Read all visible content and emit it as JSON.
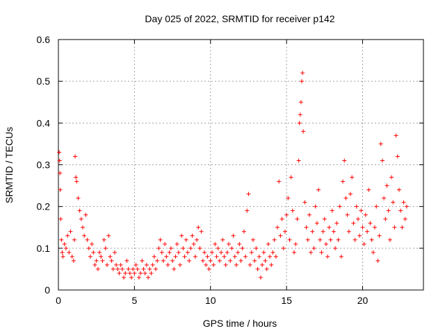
{
  "chart_data": {
    "type": "scatter",
    "title": "Day 025 of 2022, SRMTID for receiver p142",
    "xlabel": "GPS time / hours",
    "ylabel": "SRMTID / TECUs",
    "xlim": [
      0,
      24
    ],
    "ylim": [
      0,
      0.6
    ],
    "xticks": [
      0,
      5,
      10,
      15,
      20
    ],
    "yticks": [
      0,
      0.1,
      0.2,
      0.3,
      0.4,
      0.5,
      0.6
    ],
    "xtick_labels": [
      "0",
      "5",
      "10",
      "15",
      "20"
    ],
    "ytick_labels": [
      "0",
      "0.1",
      "0.2",
      "0.3",
      "0.4",
      "0.5",
      "0.6"
    ],
    "grid": true,
    "marker": "+",
    "color": "#ff0000",
    "series": [
      {
        "name": "SRMTID",
        "points": [
          [
            0.05,
            0.33
          ],
          [
            0.08,
            0.31
          ],
          [
            0.1,
            0.28
          ],
          [
            0.12,
            0.24
          ],
          [
            0.15,
            0.17
          ],
          [
            0.2,
            0.12
          ],
          [
            0.25,
            0.09
          ],
          [
            0.3,
            0.08
          ],
          [
            0.4,
            0.11
          ],
          [
            0.5,
            0.1
          ],
          [
            0.6,
            0.13
          ],
          [
            0.7,
            0.09
          ],
          [
            0.8,
            0.14
          ],
          [
            0.9,
            0.08
          ],
          [
            1.0,
            0.07
          ],
          [
            1.05,
            0.12
          ],
          [
            1.1,
            0.32
          ],
          [
            1.15,
            0.27
          ],
          [
            1.2,
            0.26
          ],
          [
            1.3,
            0.22
          ],
          [
            1.4,
            0.19
          ],
          [
            1.5,
            0.17
          ],
          [
            1.6,
            0.15
          ],
          [
            1.7,
            0.13
          ],
          [
            1.8,
            0.18
          ],
          [
            1.9,
            0.12
          ],
          [
            2.0,
            0.1
          ],
          [
            2.1,
            0.08
          ],
          [
            2.2,
            0.11
          ],
          [
            2.3,
            0.09
          ],
          [
            2.4,
            0.06
          ],
          [
            2.5,
            0.07
          ],
          [
            2.6,
            0.05
          ],
          [
            2.7,
            0.09
          ],
          [
            2.8,
            0.08
          ],
          [
            2.9,
            0.07
          ],
          [
            3.0,
            0.12
          ],
          [
            3.1,
            0.1
          ],
          [
            3.2,
            0.06
          ],
          [
            3.3,
            0.13
          ],
          [
            3.4,
            0.08
          ],
          [
            3.5,
            0.07
          ],
          [
            3.6,
            0.05
          ],
          [
            3.7,
            0.09
          ],
          [
            3.8,
            0.06
          ],
          [
            3.9,
            0.05
          ],
          [
            4.0,
            0.04
          ],
          [
            4.1,
            0.06
          ],
          [
            4.2,
            0.05
          ],
          [
            4.3,
            0.03
          ],
          [
            4.4,
            0.04
          ],
          [
            4.5,
            0.07
          ],
          [
            4.6,
            0.05
          ],
          [
            4.7,
            0.04
          ],
          [
            4.8,
            0.03
          ],
          [
            4.9,
            0.05
          ],
          [
            5.0,
            0.04
          ],
          [
            5.1,
            0.06
          ],
          [
            5.2,
            0.05
          ],
          [
            5.3,
            0.03
          ],
          [
            5.4,
            0.04
          ],
          [
            5.5,
            0.07
          ],
          [
            5.6,
            0.05
          ],
          [
            5.7,
            0.04
          ],
          [
            5.8,
            0.06
          ],
          [
            5.9,
            0.03
          ],
          [
            6.0,
            0.05
          ],
          [
            6.1,
            0.04
          ],
          [
            6.2,
            0.06
          ],
          [
            6.3,
            0.08
          ],
          [
            6.4,
            0.05
          ],
          [
            6.5,
            0.07
          ],
          [
            6.6,
            0.1
          ],
          [
            6.7,
            0.12
          ],
          [
            6.8,
            0.09
          ],
          [
            6.9,
            0.07
          ],
          [
            7.0,
            0.11
          ],
          [
            7.1,
            0.08
          ],
          [
            7.2,
            0.06
          ],
          [
            7.3,
            0.09
          ],
          [
            7.4,
            0.1
          ],
          [
            7.5,
            0.07
          ],
          [
            7.6,
            0.05
          ],
          [
            7.7,
            0.08
          ],
          [
            7.8,
            0.11
          ],
          [
            7.9,
            0.09
          ],
          [
            8.0,
            0.06
          ],
          [
            8.1,
            0.13
          ],
          [
            8.2,
            0.1
          ],
          [
            8.3,
            0.08
          ],
          [
            8.4,
            0.12
          ],
          [
            8.5,
            0.09
          ],
          [
            8.6,
            0.07
          ],
          [
            8.7,
            0.1
          ],
          [
            8.8,
            0.13
          ],
          [
            8.9,
            0.11
          ],
          [
            9.0,
            0.08
          ],
          [
            9.1,
            0.12
          ],
          [
            9.2,
            0.15
          ],
          [
            9.3,
            0.1
          ],
          [
            9.4,
            0.14
          ],
          [
            9.5,
            0.07
          ],
          [
            9.6,
            0.09
          ],
          [
            9.7,
            0.06
          ],
          [
            9.8,
            0.08
          ],
          [
            9.9,
            0.05
          ],
          [
            10.0,
            0.07
          ],
          [
            10.1,
            0.09
          ],
          [
            10.2,
            0.06
          ],
          [
            10.3,
            0.11
          ],
          [
            10.4,
            0.08
          ],
          [
            10.5,
            0.1
          ],
          [
            10.6,
            0.07
          ],
          [
            10.7,
            0.09
          ],
          [
            10.8,
            0.12
          ],
          [
            10.9,
            0.08
          ],
          [
            11.0,
            0.06
          ],
          [
            11.1,
            0.09
          ],
          [
            11.2,
            0.11
          ],
          [
            11.3,
            0.07
          ],
          [
            11.4,
            0.1
          ],
          [
            11.5,
            0.13
          ],
          [
            11.6,
            0.08
          ],
          [
            11.7,
            0.06
          ],
          [
            11.8,
            0.09
          ],
          [
            11.9,
            0.11
          ],
          [
            12.0,
            0.07
          ],
          [
            12.1,
            0.1
          ],
          [
            12.2,
            0.14
          ],
          [
            12.3,
            0.08
          ],
          [
            12.4,
            0.19
          ],
          [
            12.5,
            0.23
          ],
          [
            12.6,
            0.06
          ],
          [
            12.7,
            0.09
          ],
          [
            12.8,
            0.12
          ],
          [
            12.9,
            0.07
          ],
          [
            13.0,
            0.1
          ],
          [
            13.1,
            0.05
          ],
          [
            13.2,
            0.08
          ],
          [
            13.3,
            0.03
          ],
          [
            13.4,
            0.06
          ],
          [
            13.5,
            0.09
          ],
          [
            13.6,
            0.07
          ],
          [
            13.7,
            0.05
          ],
          [
            13.8,
            0.11
          ],
          [
            13.9,
            0.08
          ],
          [
            14.0,
            0.06
          ],
          [
            14.1,
            0.09
          ],
          [
            14.2,
            0.12
          ],
          [
            14.3,
            0.08
          ],
          [
            14.4,
            0.15
          ],
          [
            14.5,
            0.26
          ],
          [
            14.6,
            0.13
          ],
          [
            14.7,
            0.17
          ],
          [
            14.8,
            0.1
          ],
          [
            14.9,
            0.14
          ],
          [
            15.0,
            0.18
          ],
          [
            15.1,
            0.22
          ],
          [
            15.2,
            0.12
          ],
          [
            15.3,
            0.27
          ],
          [
            15.4,
            0.19
          ],
          [
            15.5,
            0.09
          ],
          [
            15.6,
            0.11
          ],
          [
            15.7,
            0.17
          ],
          [
            15.8,
            0.31
          ],
          [
            15.85,
            0.4
          ],
          [
            15.9,
            0.42
          ],
          [
            15.95,
            0.45
          ],
          [
            16.0,
            0.5
          ],
          [
            16.05,
            0.52
          ],
          [
            16.1,
            0.38
          ],
          [
            16.2,
            0.21
          ],
          [
            16.3,
            0.15
          ],
          [
            16.4,
            0.12
          ],
          [
            16.5,
            0.18
          ],
          [
            16.6,
            0.09
          ],
          [
            16.7,
            0.14
          ],
          [
            16.8,
            0.1
          ],
          [
            16.9,
            0.2
          ],
          [
            17.0,
            0.16
          ],
          [
            17.1,
            0.24
          ],
          [
            17.2,
            0.12
          ],
          [
            17.3,
            0.09
          ],
          [
            17.4,
            0.14
          ],
          [
            17.5,
            0.17
          ],
          [
            17.6,
            0.11
          ],
          [
            17.7,
            0.08
          ],
          [
            17.8,
            0.15
          ],
          [
            17.9,
            0.12
          ],
          [
            18.0,
            0.19
          ],
          [
            18.1,
            0.14
          ],
          [
            18.2,
            0.1
          ],
          [
            18.3,
            0.16
          ],
          [
            18.4,
            0.12
          ],
          [
            18.5,
            0.2
          ],
          [
            18.6,
            0.08
          ],
          [
            18.7,
            0.26
          ],
          [
            18.8,
            0.31
          ],
          [
            18.9,
            0.22
          ],
          [
            19.0,
            0.18
          ],
          [
            19.1,
            0.14
          ],
          [
            19.2,
            0.23
          ],
          [
            19.3,
            0.27
          ],
          [
            19.4,
            0.16
          ],
          [
            19.5,
            0.12
          ],
          [
            19.6,
            0.2
          ],
          [
            19.7,
            0.17
          ],
          [
            19.8,
            0.13
          ],
          [
            19.9,
            0.19
          ],
          [
            20.0,
            0.15
          ],
          [
            20.1,
            0.11
          ],
          [
            20.2,
            0.18
          ],
          [
            20.3,
            0.14
          ],
          [
            20.4,
            0.24
          ],
          [
            20.5,
            0.16
          ],
          [
            20.6,
            0.12
          ],
          [
            20.7,
            0.09
          ],
          [
            20.8,
            0.15
          ],
          [
            20.9,
            0.2
          ],
          [
            21.0,
            0.07
          ],
          [
            21.1,
            0.13
          ],
          [
            21.2,
            0.35
          ],
          [
            21.3,
            0.31
          ],
          [
            21.4,
            0.22
          ],
          [
            21.5,
            0.17
          ],
          [
            21.6,
            0.25
          ],
          [
            21.7,
            0.19
          ],
          [
            21.8,
            0.12
          ],
          [
            21.9,
            0.27
          ],
          [
            22.0,
            0.21
          ],
          [
            22.1,
            0.15
          ],
          [
            22.2,
            0.37
          ],
          [
            22.3,
            0.32
          ],
          [
            22.4,
            0.24
          ],
          [
            22.5,
            0.19
          ],
          [
            22.6,
            0.15
          ],
          [
            22.7,
            0.21
          ],
          [
            22.8,
            0.17
          ],
          [
            22.9,
            0.2
          ]
        ]
      }
    ]
  },
  "colors": {
    "series": "#ff0000",
    "grid": "#a0a0a0",
    "axis": "#000000"
  }
}
